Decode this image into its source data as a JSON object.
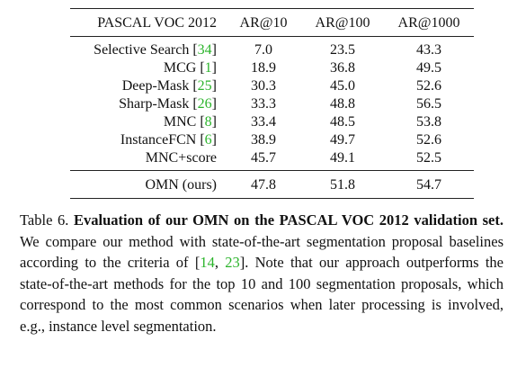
{
  "table": {
    "headers": [
      "PASCAL VOC 2012",
      "AR@10",
      "AR@100",
      "AR@1000"
    ],
    "rows": [
      {
        "method": "Selective Search",
        "cite": "34",
        "ar10": "7.0",
        "ar100": "23.5",
        "ar1000": "43.3"
      },
      {
        "method": "MCG",
        "cite": "1",
        "ar10": "18.9",
        "ar100": "36.8",
        "ar1000": "49.5"
      },
      {
        "method": "Deep-Mask",
        "cite": "25",
        "ar10": "30.3",
        "ar100": "45.0",
        "ar1000": "52.6"
      },
      {
        "method": "Sharp-Mask",
        "cite": "26",
        "ar10": "33.3",
        "ar100": "48.8",
        "ar1000": "56.5"
      },
      {
        "method": "MNC",
        "cite": "8",
        "ar10": "33.4",
        "ar100": "48.5",
        "ar1000": "53.8"
      },
      {
        "method": "InstanceFCN",
        "cite": "6",
        "ar10": "38.9",
        "ar100": "49.7",
        "ar1000": "52.6"
      },
      {
        "method": "MNC+score",
        "cite": "",
        "ar10": "45.7",
        "ar100": "49.1",
        "ar1000": "52.5"
      }
    ],
    "ours": {
      "method": "OMN (ours)",
      "ar10": "47.8",
      "ar100": "51.8",
      "ar1000": "54.7"
    },
    "bold_cells": [
      "Sharp-Mask.ar1000",
      "ours.ar10",
      "ours.ar100"
    ]
  },
  "caption": {
    "label": "Table 6.",
    "title": "Evaluation of our OMN on the PASCAL VOC 2012 validation set.",
    "text_1": "We compare our method with state-of-the-art segmentation proposal baselines according to the criteria of [",
    "cite_a": "14",
    "cite_sep": ", ",
    "cite_b": "23",
    "text_2": "]. Note that our approach outperforms the state-of-the-art methods for the top 10 and 100 segmentation proposals, which correspond to the most common scenarios when later processing is involved, e.g., instance level segmentation."
  },
  "colors": {
    "citation": "#2bb42b",
    "text": "#111111",
    "rules": "#222222"
  }
}
